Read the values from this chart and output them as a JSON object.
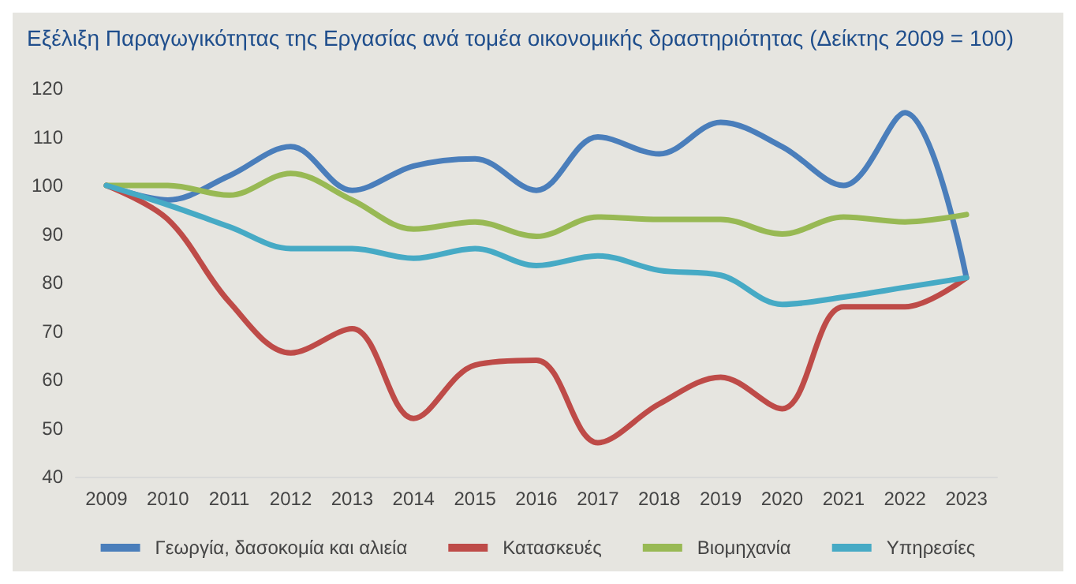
{
  "chart_data": {
    "type": "line",
    "title": "Εξέλιξη Παραγωγικότητας της Εργασίας ανά τομέα οικονομικής δραστηριότητας (Δείκτης 2009 = 100)",
    "categories": [
      "2009",
      "2010",
      "2011",
      "2012",
      "2013",
      "2014",
      "2015",
      "2016",
      "2017",
      "2018",
      "2019",
      "2020",
      "2021",
      "2022",
      "2023"
    ],
    "series": [
      {
        "name": "Γεωργία, δασοκομία και αλιεία",
        "color": "#4a7ebb",
        "values": [
          100,
          97,
          102,
          108,
          99,
          104,
          105.5,
          99,
          110,
          106.5,
          113,
          108,
          100,
          115,
          81
        ]
      },
      {
        "name": "Κατασκευές",
        "color": "#be4b48",
        "values": [
          100,
          93,
          76,
          65.5,
          70.5,
          52,
          63,
          64,
          47,
          55,
          60.5,
          54,
          75,
          75,
          81
        ]
      },
      {
        "name": "Βιομηχανία",
        "color": "#98b954",
        "values": [
          100,
          100,
          98,
          102.5,
          97,
          91,
          92.5,
          89.5,
          93.5,
          93,
          93,
          90,
          93.5,
          92.5,
          94
        ]
      },
      {
        "name": "Υπηρεσίες",
        "color": "#46aac5",
        "values": [
          100,
          96,
          91.5,
          87,
          87,
          85,
          87,
          83.5,
          85.5,
          82.5,
          81.5,
          75.5,
          77,
          79,
          81
        ]
      }
    ],
    "ylim": [
      40,
      120
    ],
    "yticks": [
      40,
      50,
      60,
      70,
      80,
      90,
      100,
      110,
      120
    ],
    "grid": false,
    "legend": "bottom",
    "marker": "none",
    "line_style": "solid"
  }
}
